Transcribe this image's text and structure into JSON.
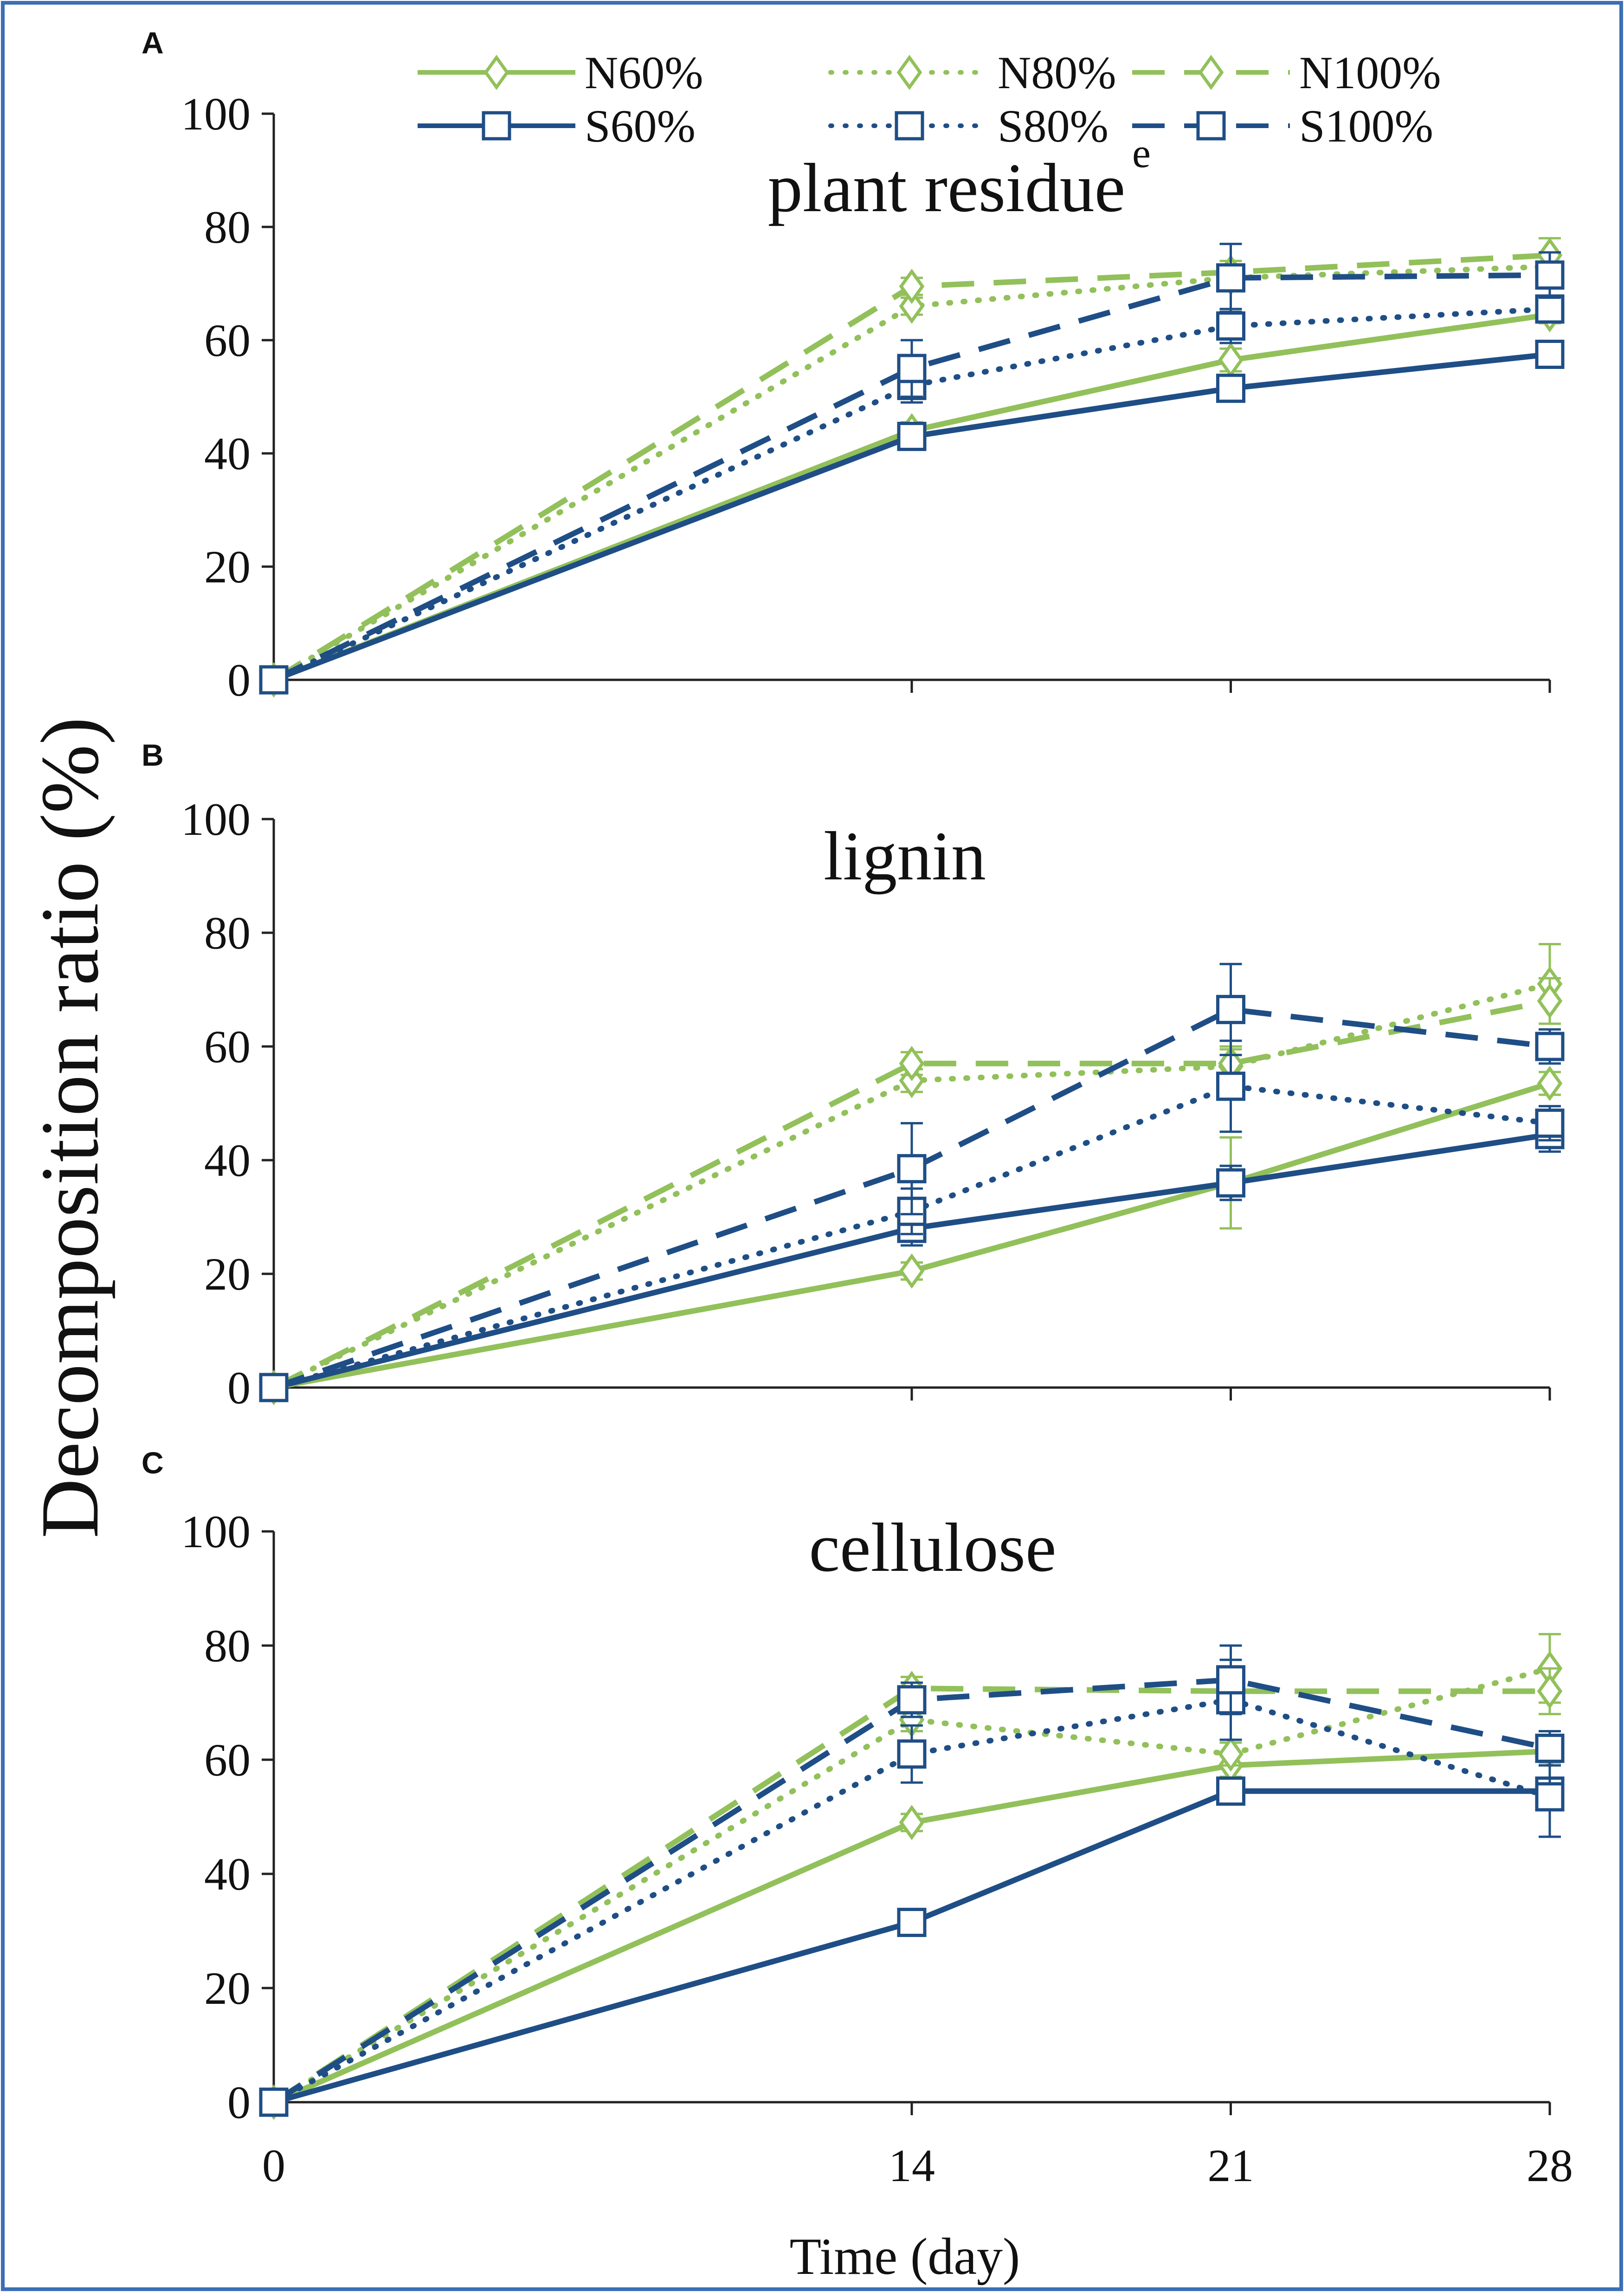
{
  "colors": {
    "green": "#92c05a",
    "blue": "#1f4e86",
    "axis": "#222222",
    "frame": "#3b6fb6"
  },
  "chart_data": {
    "type": "line",
    "ylabel": "Decomposition ratio (%)",
    "xlabel": "Time (day)",
    "x": [
      0,
      14,
      21,
      28
    ],
    "x_tick_labels": [
      "0",
      "14",
      "21",
      "28"
    ],
    "y_tick_labels": [
      "0",
      "20",
      "40",
      "60",
      "80",
      "100"
    ],
    "ylim": [
      0,
      100
    ],
    "legend": [
      {
        "key": "N60",
        "label": "N60%",
        "color": "green",
        "dash": "solid",
        "marker": "diamond"
      },
      {
        "key": "N80",
        "label": "N80%",
        "color": "green",
        "dash": "dotted",
        "marker": "diamond"
      },
      {
        "key": "N100",
        "label": "N100%",
        "color": "green",
        "dash": "dashed",
        "marker": "diamond"
      },
      {
        "key": "S60",
        "label": "S60%",
        "color": "blue",
        "dash": "solid",
        "marker": "square"
      },
      {
        "key": "S80",
        "label": "S80%",
        "color": "blue",
        "dash": "dotted",
        "marker": "square"
      },
      {
        "key": "S100",
        "label": "S100%",
        "color": "blue",
        "dash": "dashed",
        "marker": "square"
      }
    ],
    "panels": [
      {
        "letter": "A",
        "title": "plant residue",
        "stray_label": "e",
        "series": [
          {
            "key": "N60",
            "values": [
              0,
              44,
              56.5,
              64.5
            ],
            "errors": [
              0,
              1.5,
              2,
              1.5
            ]
          },
          {
            "key": "N80",
            "values": [
              0,
              66,
              71,
              73
            ],
            "errors": [
              0,
              1.5,
              2,
              2
            ]
          },
          {
            "key": "N100",
            "values": [
              0,
              69.5,
              72,
              75
            ],
            "errors": [
              0,
              1.5,
              2,
              3
            ]
          },
          {
            "key": "S60",
            "values": [
              0,
              43,
              51.5,
              57.5
            ],
            "errors": [
              0,
              1.5,
              2,
              1.5
            ]
          },
          {
            "key": "S80",
            "values": [
              0,
              52,
              62.5,
              65.5
            ],
            "errors": [
              0,
              3,
              3,
              2
            ]
          },
          {
            "key": "S100",
            "values": [
              0,
              55,
              71,
              71.5
            ],
            "errors": [
              0,
              5,
              6,
              4
            ]
          }
        ]
      },
      {
        "letter": "B",
        "title": "lignin",
        "stray_label": "",
        "series": [
          {
            "key": "N60",
            "values": [
              0,
              20.5,
              36,
              53.5
            ],
            "errors": [
              0,
              1.5,
              8,
              2
            ]
          },
          {
            "key": "N80",
            "values": [
              0,
              54,
              56.5,
              71
            ],
            "errors": [
              0,
              2,
              3,
              7
            ]
          },
          {
            "key": "N100",
            "values": [
              0,
              57,
              57,
              68
            ],
            "errors": [
              0,
              2,
              3,
              4
            ]
          },
          {
            "key": "S60",
            "values": [
              0,
              28,
              36,
              44.5
            ],
            "errors": [
              0,
              3,
              3,
              3
            ]
          },
          {
            "key": "S80",
            "values": [
              0,
              31,
              53,
              46.5
            ],
            "errors": [
              0,
              4,
              8,
              3
            ]
          },
          {
            "key": "S100",
            "values": [
              0,
              38.5,
              66.5,
              60
            ],
            "errors": [
              0,
              8,
              8,
              3
            ]
          }
        ]
      },
      {
        "letter": "C",
        "title": "cellulose",
        "stray_label": "",
        "series": [
          {
            "key": "N60",
            "values": [
              0,
              49,
              59,
              61.5
            ],
            "errors": [
              0,
              1.5,
              2,
              2
            ]
          },
          {
            "key": "N80",
            "values": [
              0,
              67,
              61,
              76
            ],
            "errors": [
              0,
              2,
              2,
              6
            ]
          },
          {
            "key": "N100",
            "values": [
              0,
              72.5,
              72,
              72
            ],
            "errors": [
              0,
              2,
              3,
              4
            ]
          },
          {
            "key": "S60",
            "values": [
              0,
              31.5,
              54.5,
              54.5
            ],
            "errors": [
              0,
              2,
              2,
              2
            ]
          },
          {
            "key": "S80",
            "values": [
              0,
              61,
              70.5,
              53.5
            ],
            "errors": [
              0,
              5,
              7,
              7
            ]
          },
          {
            "key": "S100",
            "values": [
              0,
              70.5,
              74,
              62
            ],
            "errors": [
              0,
              3,
              6,
              3
            ]
          }
        ]
      }
    ]
  }
}
